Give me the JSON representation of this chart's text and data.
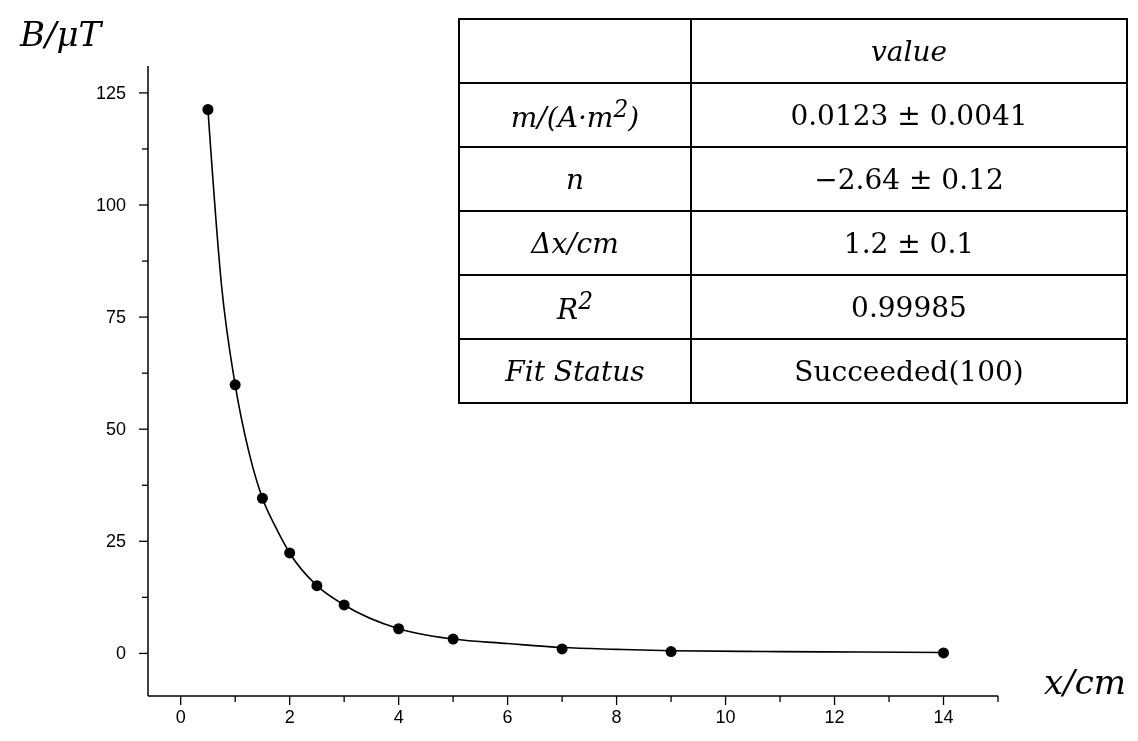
{
  "chart_data": {
    "type": "scatter",
    "xlabel": "x/cm",
    "ylabel": "B/μT",
    "xlim": [
      -0.6,
      15
    ],
    "ylim": [
      -9.5,
      131
    ],
    "xticks": [
      0,
      {
        "value": 1,
        "label": null
      },
      2,
      {
        "value": 3,
        "label": null
      },
      4,
      {
        "value": 5,
        "label": null
      },
      6,
      {
        "value": 7,
        "label": null
      },
      8,
      {
        "value": 9,
        "label": null
      },
      10,
      {
        "value": 11,
        "label": null
      },
      12,
      {
        "value": 13,
        "label": null
      },
      14,
      {
        "value": 15,
        "label": null
      }
    ],
    "yticks": [
      0,
      {
        "value": 12.5,
        "label": null
      },
      25,
      {
        "value": 37.5,
        "label": null
      },
      50,
      {
        "value": 62.5,
        "label": null
      },
      75,
      {
        "value": 87.5,
        "label": null
      },
      100,
      {
        "value": 112.5,
        "label": null
      },
      125
    ],
    "grid": false,
    "series": [
      {
        "type": "line",
        "color": "#000000",
        "marker": "none",
        "line_style": "solid",
        "x": [
          0.5,
          0.75,
          1,
          1.25,
          1.5,
          1.75,
          2,
          2.5,
          3,
          4,
          5,
          6,
          7,
          8,
          9,
          11,
          12.5,
          14
        ],
        "values": [
          121.3,
          82,
          59.9,
          45,
          34.6,
          28,
          22.4,
          15.1,
          10.8,
          5.5,
          3.2,
          2.2,
          1.3,
          0.9,
          0.6,
          0.4,
          0.3,
          0.2
        ]
      },
      {
        "color": "#000000",
        "marker": "circle",
        "x": [
          0.5,
          1,
          1.5,
          2,
          2.5,
          3,
          4,
          5,
          7,
          9,
          14
        ],
        "values": [
          121.3,
          59.9,
          34.6,
          22.4,
          15.1,
          10.8,
          5.5,
          3.2,
          1.0,
          0.4,
          0.1
        ]
      }
    ],
    "annotations": [
      "value",
      "m/(A·m$^{2}$)",
      "0.0123 ± 0.0041",
      "n",
      "−2.64 ± 0.12",
      "Δx/cm",
      "1.2 ± 0.1",
      "R$^{2}$",
      "0.99985",
      "Fit Status",
      "Succeeded(100)"
    ]
  }
}
